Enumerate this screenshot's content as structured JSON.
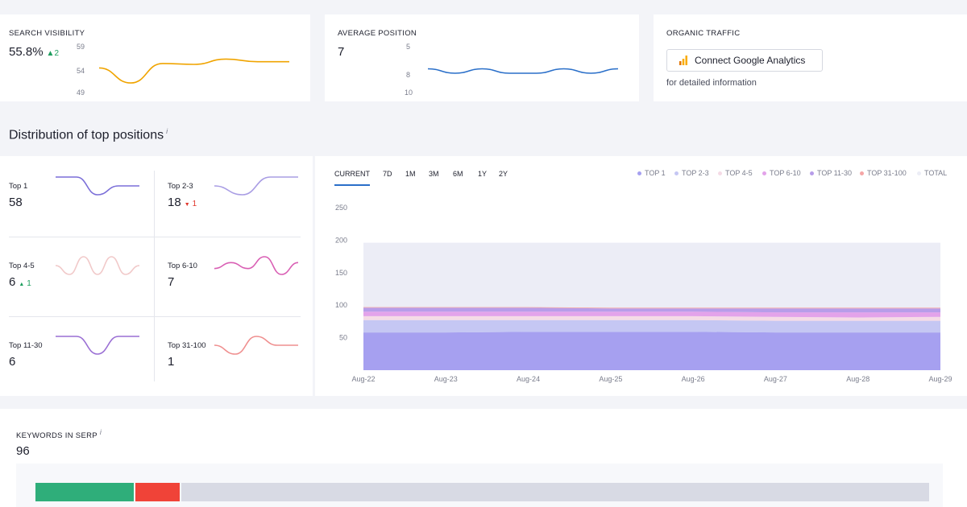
{
  "search_visibility": {
    "title": "SEARCH VISIBILITY",
    "value": "55.8%",
    "delta": "2",
    "axis_ticks": [
      "59",
      "54",
      "49"
    ],
    "trend": [
      54.2,
      50.8,
      55.2,
      55.0,
      56.2,
      55.6,
      55.6
    ],
    "color": "#f0a400"
  },
  "average_position": {
    "title": "AVERAGE POSITION",
    "value": "7",
    "axis_ticks": [
      "5",
      "8",
      "10"
    ],
    "trend": [
      7.5,
      8.0,
      7.5,
      8.0,
      8.0,
      7.5,
      8.0,
      7.5
    ],
    "color": "#2a6fc9"
  },
  "organic_traffic": {
    "title": "ORGANIC TRAFFIC",
    "connect_label": "Connect Google Analytics",
    "subtext": "for detailed information"
  },
  "distribution": {
    "title": "Distribution of top positions",
    "info": "i",
    "tiles": [
      {
        "label": "Top 1",
        "value": "58",
        "delta": "",
        "dir": "",
        "color": "#7b6fd8",
        "trend": [
          3,
          3,
          1,
          2,
          2
        ]
      },
      {
        "label": "Top 2-3",
        "value": "18",
        "delta": "1",
        "dir": "down",
        "color": "#a99de4",
        "trend": [
          2,
          1,
          3,
          3
        ]
      },
      {
        "label": "Top 4-5",
        "value": "6",
        "delta": "1",
        "dir": "up",
        "color": "#f1c9c9",
        "trend": [
          2,
          1,
          3,
          1,
          3,
          1,
          2
        ]
      },
      {
        "label": "Top 6-10",
        "value": "7",
        "delta": "",
        "dir": "",
        "color": "#d95fb4",
        "trend": [
          2,
          3,
          2,
          4,
          1,
          3
        ]
      },
      {
        "label": "Top 11-30",
        "value": "6",
        "delta": "",
        "dir": "",
        "color": "#9a6fd4",
        "trend": [
          2,
          2,
          1,
          2,
          2
        ]
      },
      {
        "label": "Top 31-100",
        "value": "1",
        "delta": "",
        "dir": "",
        "color": "#ef8f8f",
        "trend": [
          2,
          1,
          3,
          2,
          2
        ]
      }
    ]
  },
  "range_tabs": [
    "CURRENT",
    "7D",
    "1M",
    "3M",
    "6M",
    "1Y",
    "2Y"
  ],
  "active_range": "CURRENT",
  "chart_data": {
    "type": "area",
    "x": [
      "Aug-22",
      "Aug-23",
      "Aug-24",
      "Aug-25",
      "Aug-26",
      "Aug-27",
      "Aug-28",
      "Aug-29"
    ],
    "ylim": [
      0,
      250
    ],
    "y_ticks": [
      250,
      200,
      150,
      100,
      50
    ],
    "legend": [
      "TOP 1",
      "TOP 2-3",
      "TOP 4-5",
      "TOP 6-10",
      "TOP 11-30",
      "TOP 31-100",
      "TOTAL"
    ],
    "series": [
      {
        "name": "TOP 1",
        "color": "#a6a0f0",
        "values": [
          58,
          58,
          59,
          59,
          59,
          58,
          58,
          58
        ]
      },
      {
        "name": "TOP 2-3",
        "color": "#c5c7f3",
        "values": [
          19,
          19,
          18,
          18,
          18,
          18,
          18,
          18
        ]
      },
      {
        "name": "TOP 4-5",
        "color": "#f5dbe6",
        "values": [
          6,
          6,
          6,
          6,
          6,
          6,
          5,
          6
        ]
      },
      {
        "name": "TOP 6-10",
        "color": "#e3a3ea",
        "values": [
          7,
          7,
          7,
          7,
          7,
          7,
          8,
          7
        ]
      },
      {
        "name": "TOP 11-30",
        "color": "#b79de9",
        "values": [
          6,
          6,
          6,
          5,
          5,
          6,
          6,
          6
        ]
      },
      {
        "name": "TOP 31-100",
        "color": "#f5a6a6",
        "values": [
          1,
          1,
          1,
          1,
          1,
          1,
          1,
          1
        ]
      },
      {
        "name": "TOTAL",
        "color": "#ecedf6",
        "values": [
          196,
          196,
          196,
          196,
          196,
          196,
          196,
          196
        ]
      }
    ]
  },
  "keywords": {
    "title": "KEYWORDS IN SERP",
    "info": "i",
    "value": "96",
    "bar_segments": [
      {
        "name": "green",
        "color": "#2fae7a",
        "fraction": 0.11
      },
      {
        "name": "red",
        "color": "#f04338",
        "fraction": 0.05
      },
      {
        "name": "rest",
        "color": "#d8dae4",
        "fraction": 0.84
      }
    ]
  }
}
